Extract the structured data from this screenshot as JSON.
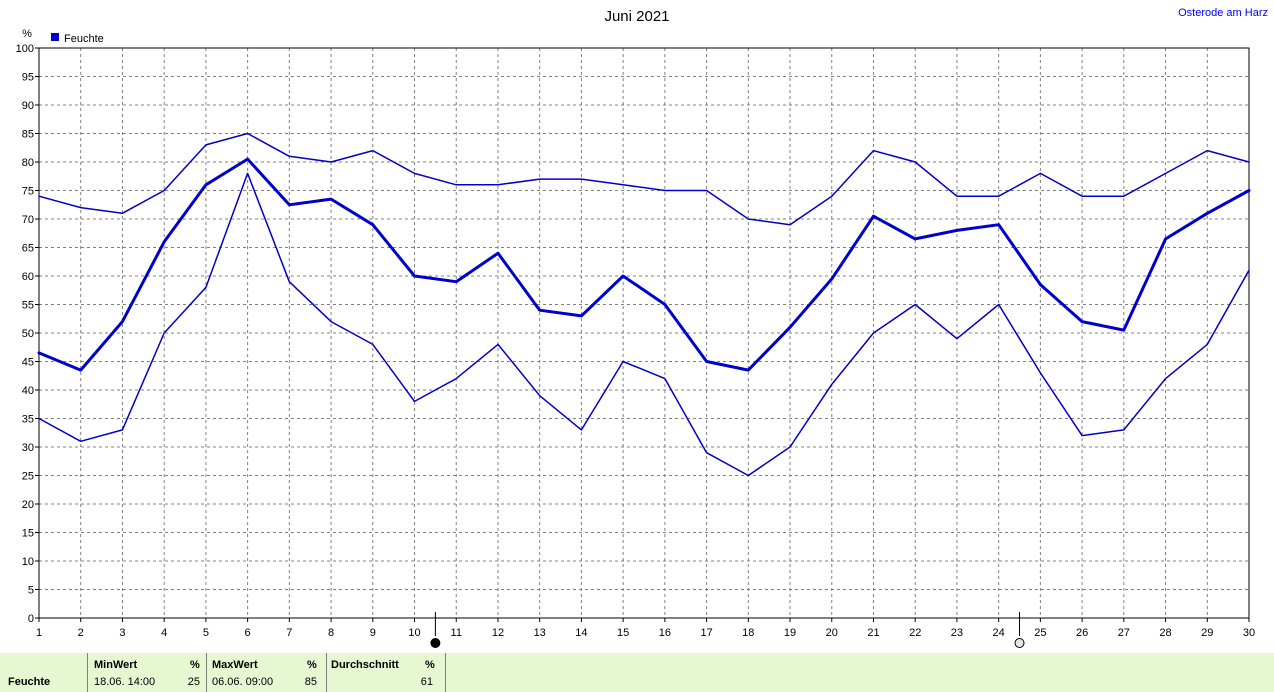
{
  "chart_data": {
    "type": "line",
    "title": "Juni 2021",
    "location": "Osterode am Harz",
    "y_unit": "%",
    "legend": "Feuchte",
    "legend_color": "#0000cc",
    "line_color": "#0000cc",
    "ylim": [
      0,
      100
    ],
    "y_ticks": [
      0,
      5,
      10,
      15,
      20,
      25,
      30,
      35,
      40,
      45,
      50,
      55,
      60,
      65,
      70,
      75,
      80,
      85,
      90,
      95,
      100
    ],
    "x": [
      1,
      2,
      3,
      4,
      5,
      6,
      7,
      8,
      9,
      10,
      11,
      12,
      13,
      14,
      15,
      16,
      17,
      18,
      19,
      20,
      21,
      22,
      23,
      24,
      25,
      26,
      27,
      28,
      29,
      30
    ],
    "grid": true,
    "series": [
      {
        "role": "max",
        "width": 1.5,
        "values": [
          74,
          72,
          71,
          75,
          83,
          85,
          81,
          80,
          82,
          78,
          76,
          76,
          77,
          77,
          76,
          75,
          75,
          70,
          69,
          74,
          82,
          80,
          74,
          74,
          78,
          74,
          74,
          78,
          82,
          80
        ]
      },
      {
        "role": "avg",
        "width": 3,
        "values": [
          46.5,
          43.5,
          52,
          66,
          76,
          80.5,
          72.5,
          73.5,
          69,
          60,
          59,
          64,
          54,
          53,
          60,
          55,
          45,
          43.5,
          51,
          59.5,
          70.5,
          66.5,
          68,
          69,
          58.5,
          52,
          50.5,
          66.5,
          71,
          75
        ]
      },
      {
        "role": "min",
        "width": 1.5,
        "values": [
          35,
          31,
          33,
          50,
          58,
          78,
          59,
          52,
          48,
          38,
          42,
          48,
          39,
          33,
          45,
          42,
          29,
          25,
          30,
          41,
          50,
          55,
          49,
          55,
          43,
          32,
          33,
          42,
          48,
          61
        ]
      }
    ],
    "markers": [
      {
        "type": "filled",
        "after_day": 10
      },
      {
        "type": "hollow",
        "after_day": 24
      }
    ]
  },
  "stats": {
    "row_label": "Feuchte",
    "min": {
      "header": "MinWert",
      "unit": "%",
      "when": "18.06.  14:00",
      "value": "25"
    },
    "max": {
      "header": "MaxWert",
      "unit": "%",
      "when": "06.06.  09:00",
      "value": "85"
    },
    "avg": {
      "header": "Durchschnitt",
      "unit": "%",
      "value": "61"
    }
  }
}
